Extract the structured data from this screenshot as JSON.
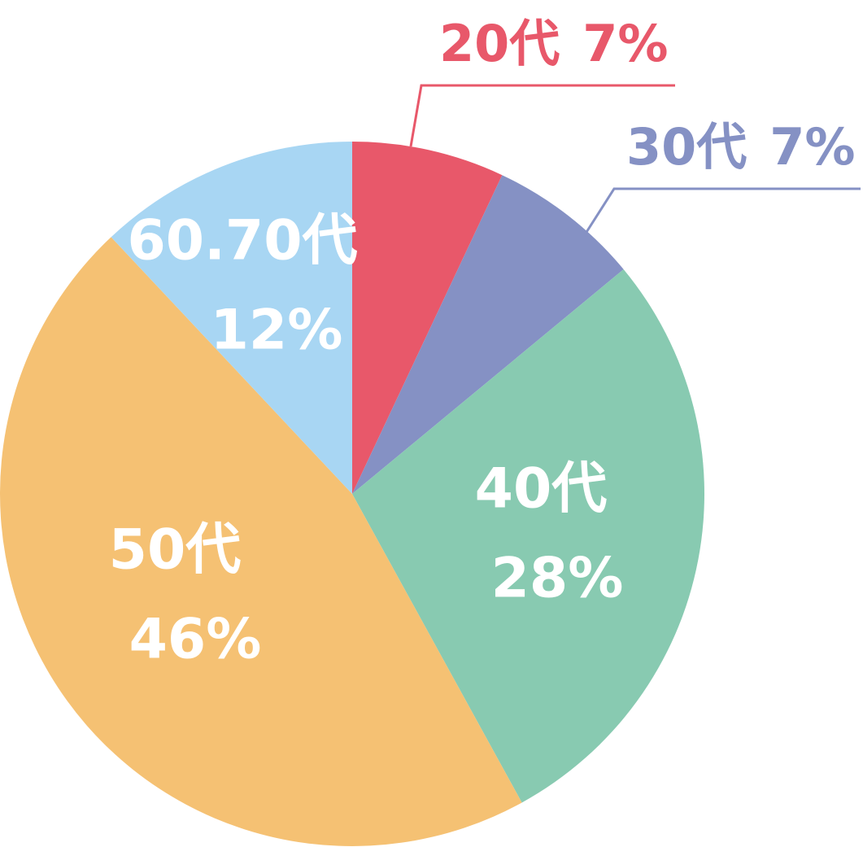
{
  "chart_data": {
    "type": "pie",
    "categories": [
      "20代",
      "30代",
      "40代",
      "50代",
      "60.70代"
    ],
    "values": [
      7,
      7,
      28,
      46,
      12
    ],
    "value_labels": [
      "7%",
      "7%",
      "28%",
      "46%",
      "12%"
    ],
    "colors": [
      "#e8586a",
      "#8591c4",
      "#88cab1",
      "#f5c173",
      "#a8d6f3"
    ]
  }
}
